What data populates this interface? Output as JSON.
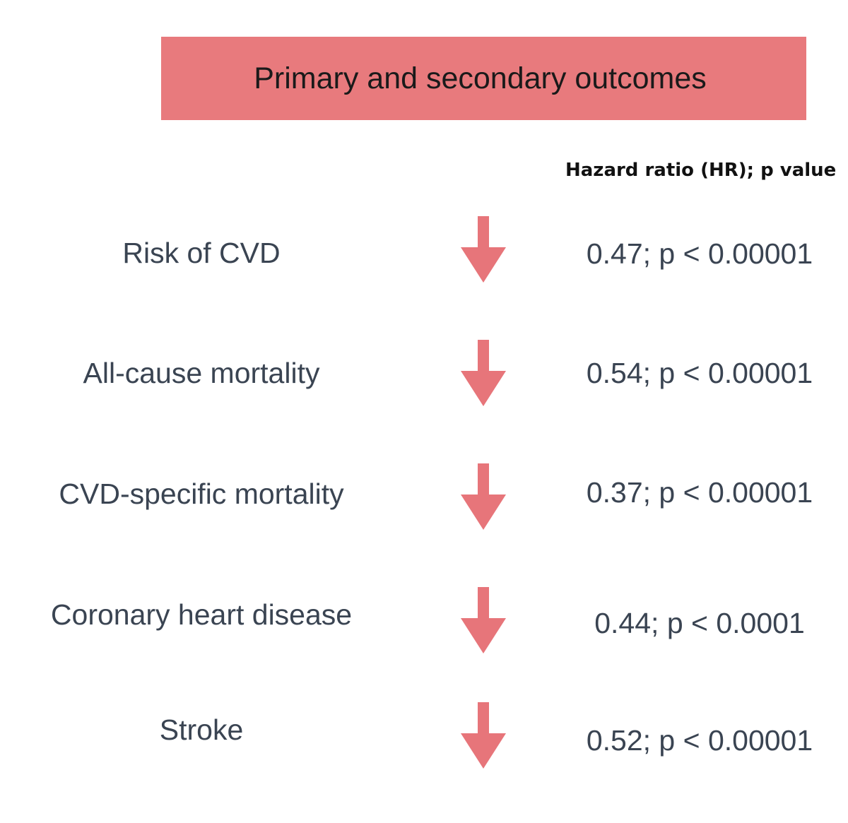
{
  "title": "Primary and secondary outcomes",
  "column_header": "Hazard ratio (HR); p value",
  "colors": {
    "banner": "#e87a7d",
    "arrow": "#e7757a",
    "text": "#3a4452"
  },
  "outcomes": [
    {
      "label": "Risk of CVD",
      "value": "0.47; p < 0.00001",
      "icon": "down-arrow-icon"
    },
    {
      "label": "All-cause mortality",
      "value": "0.54; p < 0.00001",
      "icon": "down-arrow-icon"
    },
    {
      "label": "CVD-specific mortality",
      "value": "0.37; p < 0.00001",
      "icon": "down-arrow-icon"
    },
    {
      "label": "Coronary heart disease",
      "value": "0.44; p < 0.0001",
      "icon": "down-arrow-icon"
    },
    {
      "label": "Stroke",
      "value": "0.52; p < 0.00001",
      "icon": "down-arrow-icon"
    }
  ]
}
